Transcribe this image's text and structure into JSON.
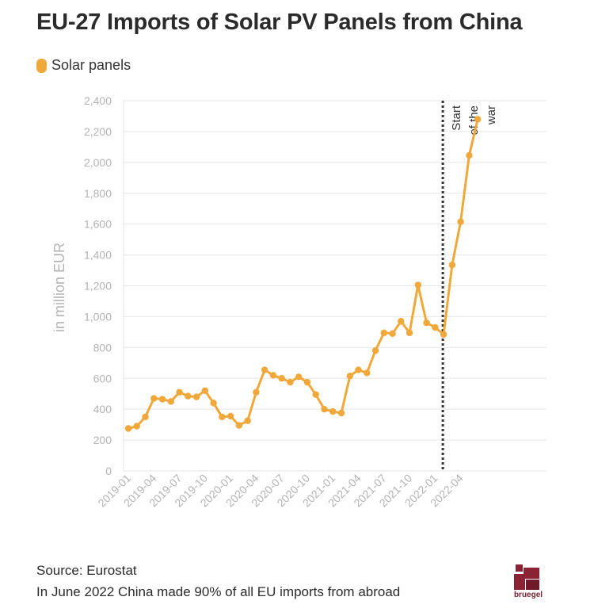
{
  "title": "EU-27 Imports of Solar PV Panels from China",
  "colors": {
    "series": "#f0a83a",
    "grid": "#e6e6e6",
    "axis_text": "#b3b3b3",
    "brand": "#8b2335"
  },
  "chart_data": {
    "type": "line",
    "ylabel": "in million EUR",
    "ylim": [
      0,
      2400
    ],
    "yticks": [
      "0",
      "200",
      "400",
      "600",
      "800",
      "1,000",
      "1,200",
      "1,400",
      "1,600",
      "1,800",
      "2,000",
      "2,200",
      "2,400"
    ],
    "xtick_labels": [
      "2019-01",
      "2019-04",
      "2019-07",
      "2019-10",
      "2020-01",
      "2020-04",
      "2020-07",
      "2020-10",
      "2021-01",
      "2021-04",
      "2021-07",
      "2021-10",
      "2022-01",
      "2022-04"
    ],
    "legend": {
      "label": "Solar panels",
      "position": "top-left"
    },
    "grid": true,
    "annotation": {
      "label": [
        "Start",
        "of the",
        "war"
      ],
      "x": "2022-02",
      "style": "dotted vertical line"
    },
    "series": [
      {
        "name": "Solar panels",
        "x": [
          "2019-01",
          "2019-02",
          "2019-03",
          "2019-04",
          "2019-05",
          "2019-06",
          "2019-07",
          "2019-08",
          "2019-09",
          "2019-10",
          "2019-11",
          "2019-12",
          "2020-01",
          "2020-02",
          "2020-03",
          "2020-04",
          "2020-05",
          "2020-06",
          "2020-07",
          "2020-08",
          "2020-09",
          "2020-10",
          "2020-11",
          "2020-12",
          "2021-01",
          "2021-02",
          "2021-03",
          "2021-04",
          "2021-05",
          "2021-06",
          "2021-07",
          "2021-08",
          "2021-09",
          "2021-10",
          "2021-11",
          "2021-12",
          "2022-01",
          "2022-02",
          "2022-03",
          "2022-04",
          "2022-05",
          "2022-06"
        ],
        "values": [
          275,
          290,
          350,
          470,
          465,
          450,
          510,
          485,
          480,
          520,
          440,
          350,
          355,
          295,
          325,
          510,
          655,
          620,
          600,
          575,
          610,
          575,
          495,
          400,
          385,
          375,
          615,
          655,
          635,
          780,
          895,
          890,
          970,
          895,
          1205,
          960,
          930,
          885,
          1335,
          1615,
          2045,
          2280
        ]
      }
    ]
  },
  "footer": {
    "source": "Source: Eurostat",
    "note": "In June 2022 China made 90% of all EU imports from abroad"
  },
  "logo": {
    "text": "bruegel"
  }
}
